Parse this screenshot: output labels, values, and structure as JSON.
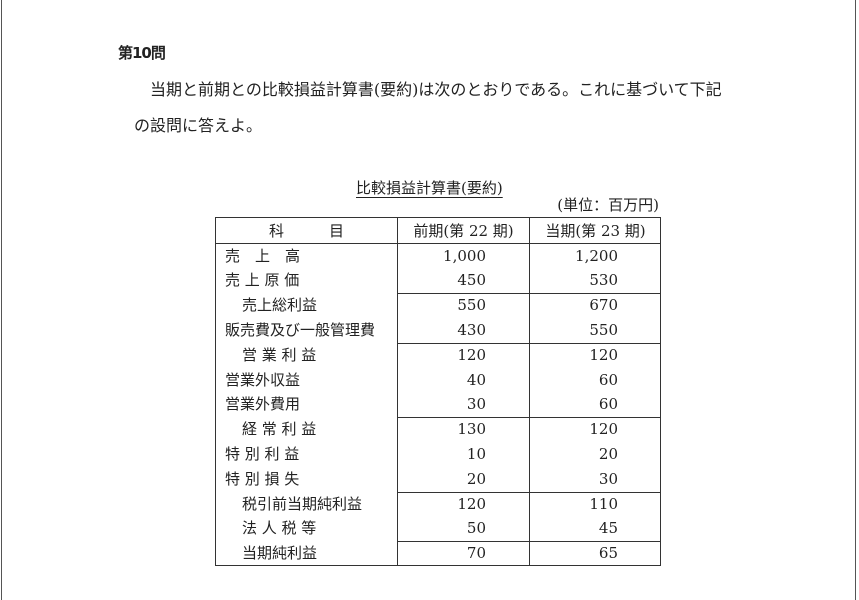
{
  "question_title": "第10問",
  "intro_line1": "当期と前期との比較損益計算書(要約)は次のとおりである。これに基づいて下記",
  "intro_line2": "の設問に答えよ。",
  "table_title": "比較損益計算書(要約)",
  "unit": "(単位：百万円)",
  "headers": [
    "科　　　目",
    "前期(第 22 期)",
    "当期(第 23 期)"
  ],
  "rows": [
    {
      "label": "売　上　高",
      "indent": false,
      "prev": "1,000",
      "curr": "1,200"
    },
    {
      "label": "売 上 原 価",
      "indent": false,
      "prev": "450",
      "curr": "530"
    },
    {
      "label": "売上総利益",
      "indent": true,
      "prev": "550",
      "curr": "670"
    },
    {
      "label": "販売費及び一般管理費",
      "indent": false,
      "prev": "430",
      "curr": "550"
    },
    {
      "label": "営 業 利 益",
      "indent": true,
      "prev": "120",
      "curr": "120"
    },
    {
      "label": "営業外収益",
      "indent": false,
      "prev": "40",
      "curr": "60"
    },
    {
      "label": "営業外費用",
      "indent": false,
      "prev": "30",
      "curr": "60"
    },
    {
      "label": "経 常 利 益",
      "indent": true,
      "prev": "130",
      "curr": "120"
    },
    {
      "label": "特 別 利 益",
      "indent": false,
      "prev": "10",
      "curr": "20"
    },
    {
      "label": "特 別 損 失",
      "indent": false,
      "prev": "20",
      "curr": "30"
    },
    {
      "label": "税引前当期純利益",
      "indent": true,
      "prev": "120",
      "curr": "110"
    },
    {
      "label": "法 人 税 等",
      "indent": true,
      "prev": "50",
      "curr": "45"
    },
    {
      "label": "当期純利益",
      "indent": true,
      "prev": "70",
      "curr": "65"
    }
  ]
}
